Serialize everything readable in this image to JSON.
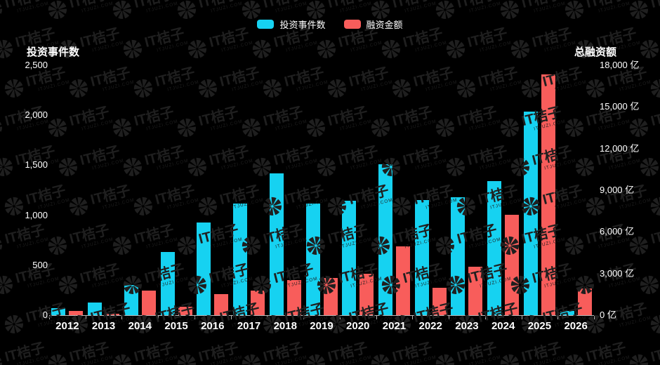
{
  "watermark": {
    "text": "IT桔子",
    "subtext": "ITJUZI.COM"
  },
  "legend": {
    "items": [
      {
        "label": "投资事件数",
        "color": "#16d2f1"
      },
      {
        "label": "融资金额",
        "color": "#f85d5b"
      }
    ]
  },
  "left_axis": {
    "title": "投资事件数",
    "ticks": [
      "2,500",
      "2,000",
      "1,500",
      "1,000",
      "500",
      "0"
    ],
    "max": 2500
  },
  "right_axis": {
    "title": "总融资额",
    "ticks": [
      "18,000 亿",
      "15,000 亿",
      "12,000 亿",
      "9,000 亿",
      "6,000 亿",
      "3,000 亿",
      "0 亿"
    ],
    "max": 18000
  },
  "chart_data": {
    "type": "bar",
    "title": "",
    "categories": [
      "2012",
      "2013",
      "2014",
      "2015",
      "2016",
      "2017",
      "2018",
      "2019",
      "2020",
      "2021",
      "2022",
      "2023",
      "2024",
      "2025",
      "2026"
    ],
    "series": [
      {
        "name": "投资事件数",
        "axis": "left",
        "color": "#16d2f1",
        "values": [
          70,
          125,
          305,
          635,
          930,
          1120,
          1420,
          1115,
          1145,
          1510,
          1150,
          1180,
          1340,
          2035,
          45
        ]
      },
      {
        "name": "融资金额",
        "axis": "right",
        "color": "#f85d5b",
        "values": [
          320,
          90,
          1770,
          610,
          1530,
          1780,
          2540,
          2700,
          2960,
          4980,
          1960,
          3510,
          7220,
          17320,
          1910
        ]
      }
    ],
    "left_ylabel": "投资事件数",
    "right_ylabel": "总融资额",
    "left_ylim": [
      0,
      2500
    ],
    "right_ylim": [
      0,
      18000
    ],
    "right_unit": "亿",
    "legend_position": "top",
    "grid": "off",
    "background": "#000000"
  }
}
